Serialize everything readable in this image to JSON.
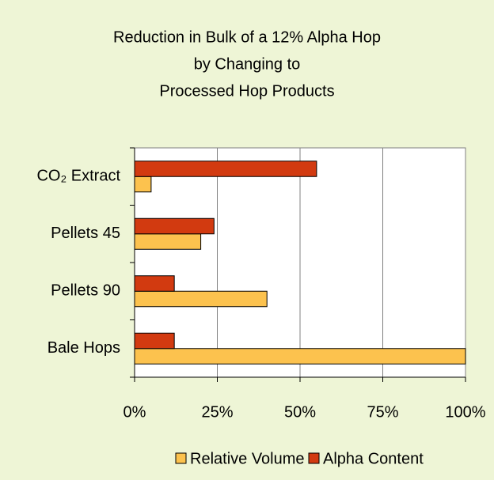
{
  "chart_data": {
    "type": "bar",
    "orientation": "horizontal",
    "title": [
      "Reduction in Bulk of a 12% Alpha Hop",
      "by Changing to",
      "Processed Hop Products"
    ],
    "categories": [
      "CO₂ Extract",
      "Pellets 45",
      "Pellets 90",
      "Bale Hops"
    ],
    "series": [
      {
        "name": "Relative Volume",
        "color": "#fcc24e",
        "values": [
          5,
          20,
          40,
          100
        ]
      },
      {
        "name": "Alpha Content",
        "color": "#d23a10",
        "values": [
          55,
          24,
          12,
          12
        ]
      }
    ],
    "xlim": [
      0,
      100
    ],
    "xticks": [
      {
        "value": 0,
        "label": "0%"
      },
      {
        "value": 25,
        "label": "25%"
      },
      {
        "value": 50,
        "label": "50%"
      },
      {
        "value": 75,
        "label": "75%"
      },
      {
        "value": 100,
        "label": "100%"
      }
    ],
    "grid": true,
    "legend": "bottom"
  }
}
